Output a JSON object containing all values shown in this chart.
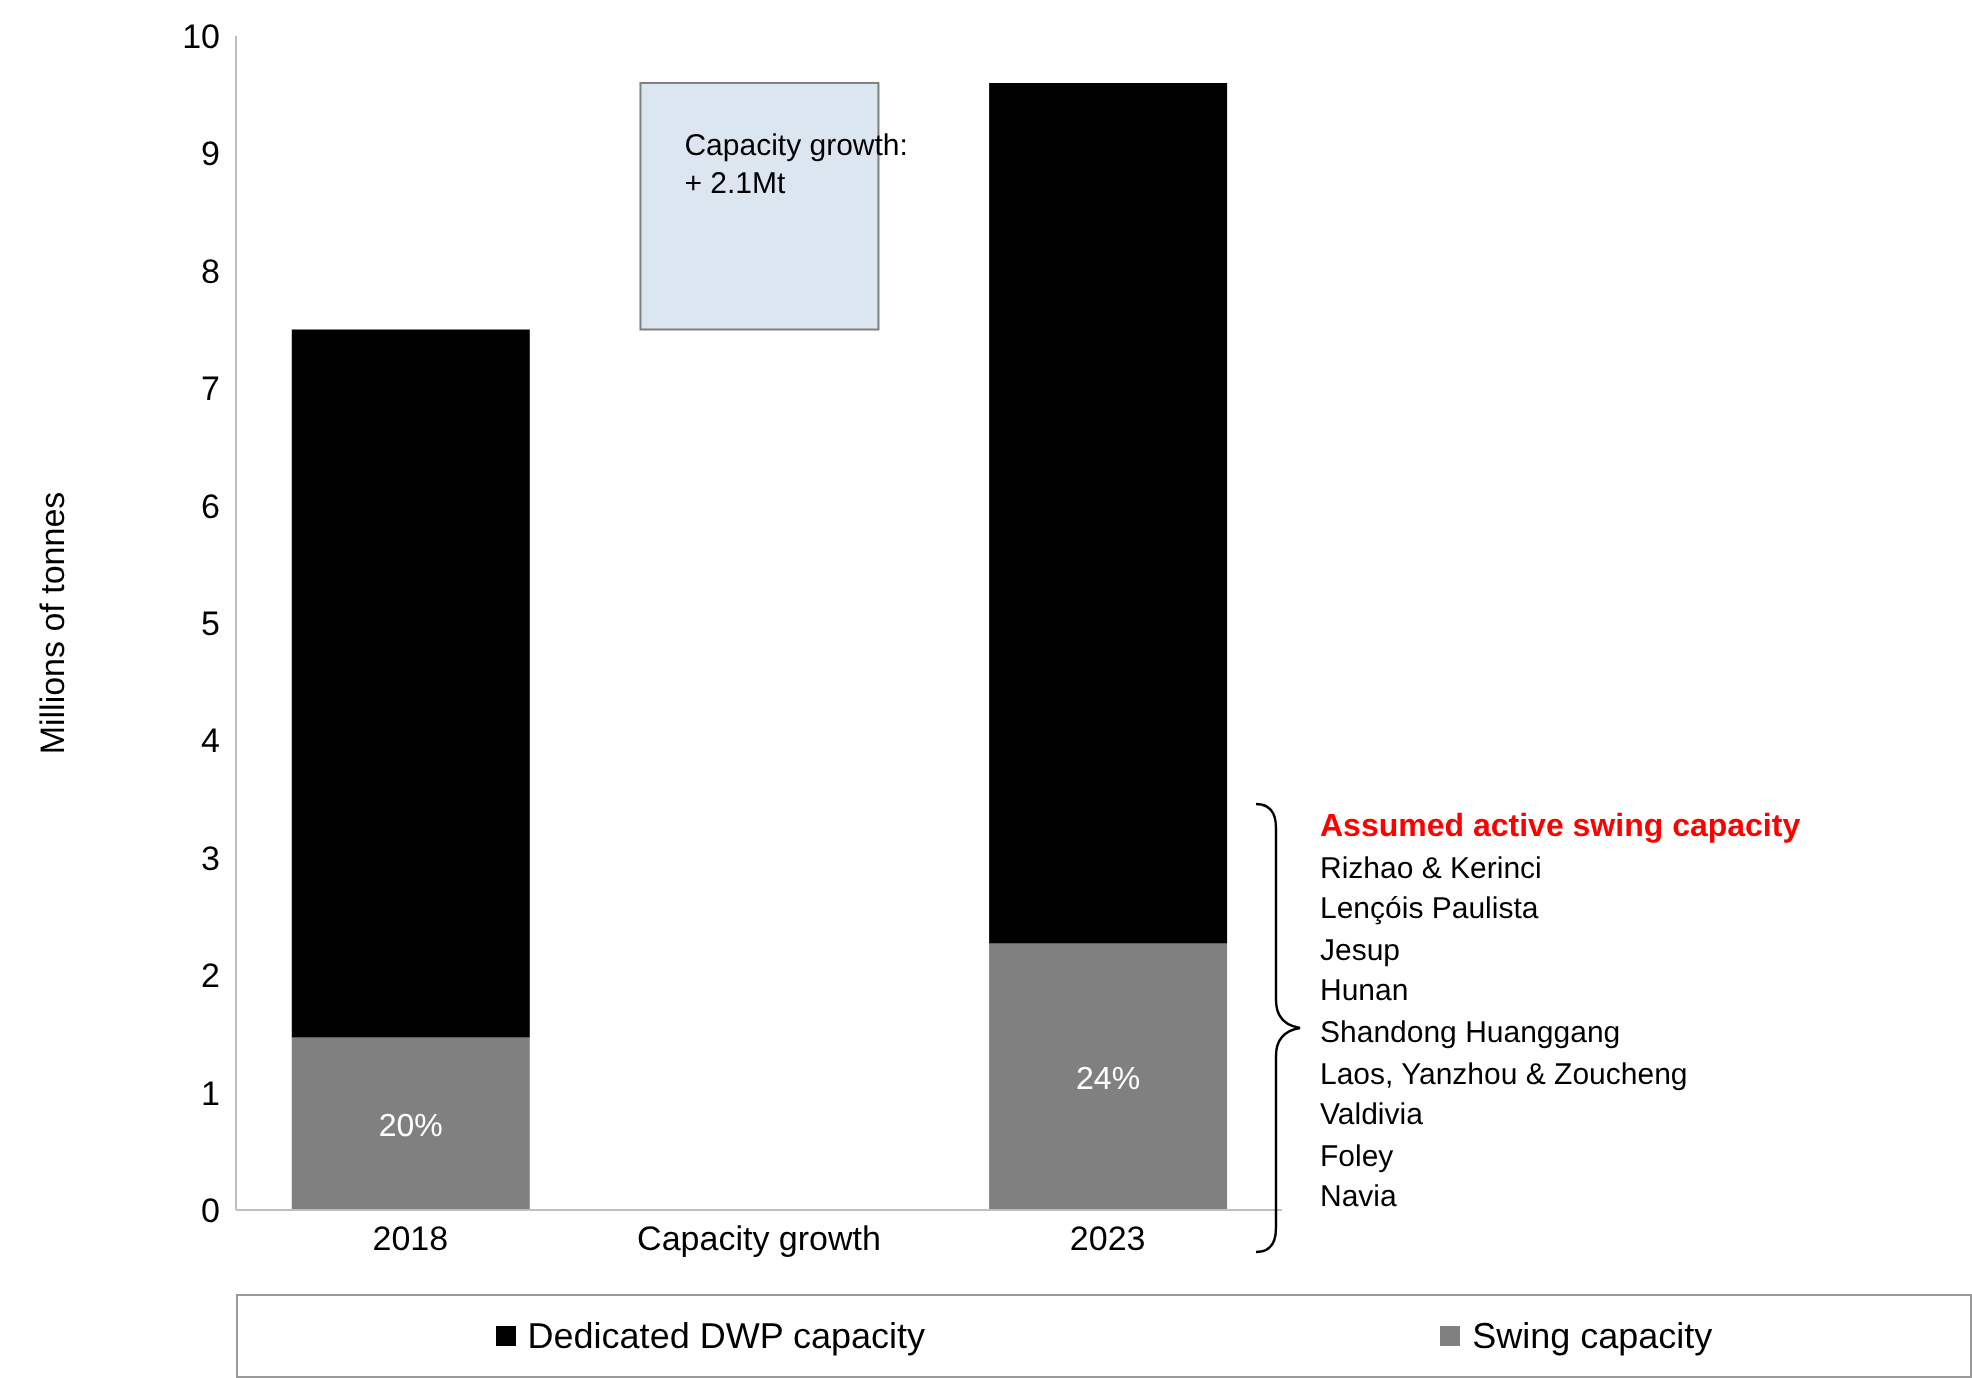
{
  "chart_data": {
    "type": "bar",
    "stacked": true,
    "ylabel": "Millions of tonnes",
    "categories": [
      "2018",
      "Capacity growth",
      "2023"
    ],
    "series": [
      {
        "name": "Swing capacity",
        "color": "#808080",
        "values": [
          1.47,
          null,
          2.27
        ]
      },
      {
        "name": "Dedicated DWP capacity",
        "color": "#000000",
        "values": [
          6.03,
          null,
          7.33
        ]
      },
      {
        "color": "#dce6f1",
        "values": [
          null,
          2.1,
          null
        ],
        "base": [
          null,
          7.5,
          null
        ],
        "value_labels": [
          null,
          "Capacity growth:\n+ 2.1Mt",
          null
        ]
      }
    ],
    "ylim": [
      0,
      10
    ],
    "yticks": [
      0,
      1,
      2,
      3,
      4,
      5,
      6,
      7,
      8,
      9,
      10
    ],
    "legend": "bottom",
    "annotations": [
      "20%",
      "24%",
      "Assumed active swing capacity",
      "Rizhao & Kerinci",
      "Lençóis Paulista",
      "Jesup",
      "Hunan",
      "Shandong Huanggang",
      "Laos, Yanzhou & Zoucheng",
      "Valdivia",
      "Foley",
      "Navia"
    ]
  }
}
